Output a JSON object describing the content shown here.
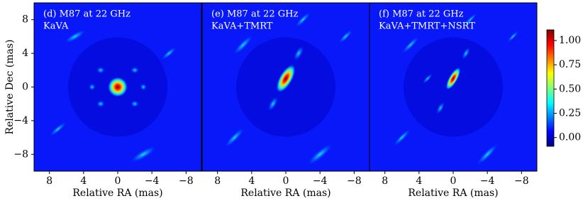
{
  "chart_data": [
    {
      "type": "image",
      "title": "(d) M87 at 22 GHz",
      "subtitle": "KaVA",
      "xlabel": "Relative RA (mas)",
      "ylabel": "Relative Dec (mas)",
      "xlim": [
        9.8,
        -9.8
      ],
      "xticks": [
        8,
        4,
        0,
        {
          "value": -4,
          "label": "−4"
        },
        {
          "value": -8,
          "label": "−8"
        }
      ],
      "ylim": [
        -10,
        10
      ],
      "yticks": [
        8,
        4,
        0,
        {
          "value": -4,
          "label": "−4"
        },
        {
          "value": -8,
          "label": "−8"
        }
      ]
    },
    {
      "type": "image",
      "title": "(e) M87 at 22 GHz",
      "subtitle": "KaVA+TMRT",
      "xlabel": "Relative RA (mas)",
      "xlim": [
        9.8,
        -9.8
      ],
      "xticks": [
        8,
        4,
        0,
        {
          "value": -4,
          "label": "−4"
        },
        {
          "value": -8,
          "label": "−8"
        }
      ],
      "ylim": [
        -10,
        10
      ]
    },
    {
      "type": "image",
      "title": "(f) M87 at 22 GHz",
      "subtitle": "KaVA+TMRT+NSRT",
      "xlabel": "Relative RA (mas)",
      "xlim": [
        9.8,
        -9.8
      ],
      "xticks": [
        8,
        4,
        0,
        {
          "value": -4,
          "label": "−4"
        },
        {
          "value": -8,
          "label": "−8"
        }
      ],
      "ylim": [
        -10,
        10
      ],
      "colorbar": {
        "colormap": "jet",
        "clim": [
          -0.09,
          1.11
        ],
        "ticks": [
          {
            "value": 1,
            "label": "1.00"
          },
          {
            "value": 0.75,
            "label": "0.75"
          },
          {
            "value": 0.5,
            "label": "0.50"
          },
          {
            "value": 0.25,
            "label": "0.25"
          },
          {
            "value": 0,
            "label": "0.00"
          }
        ]
      }
    }
  ]
}
